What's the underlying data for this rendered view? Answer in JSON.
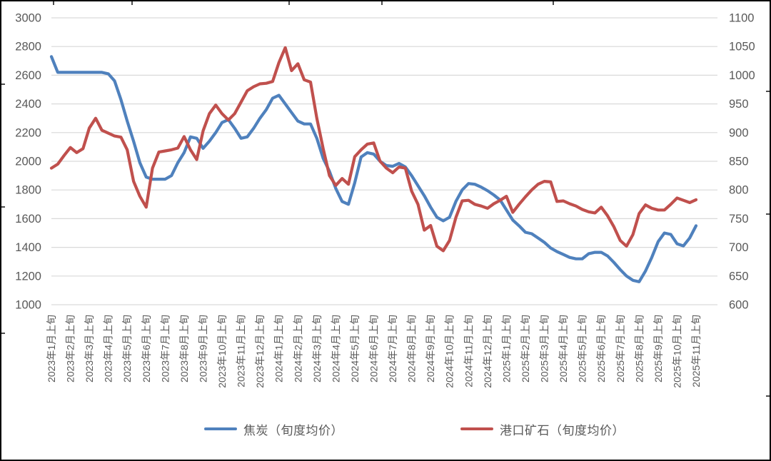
{
  "colors": {
    "grid": "#D9D9D9",
    "axis_text": "#595959",
    "background": "#FFFFFF",
    "frame": "#000000",
    "coke_blue": "#4F81BD",
    "ore_red": "#C0504D"
  },
  "chart_data": {
    "type": "line",
    "title": "",
    "points_per_label": 3,
    "x_unit": "旬",
    "grid": true,
    "legend_position": "bottom",
    "x_labels": [
      "2023年1月上旬",
      "2023年2月上旬",
      "2023年3月上旬",
      "2023年4月上旬",
      "2023年5月上旬",
      "2023年6月上旬",
      "2023年7月上旬",
      "2023年8月上旬",
      "2023年9月上旬",
      "2023年10月上旬",
      "2023年11月上旬",
      "2023年12月上旬",
      "2024年1月上旬",
      "2024年2月上旬",
      "2024年3月上旬",
      "2024年4月上旬",
      "2024年5月上旬",
      "2024年6月上旬",
      "2024年7月上旬",
      "2024年8月上旬",
      "2024年9月上旬",
      "2024年10月上旬",
      "2024年11月上旬",
      "2024年12月上旬",
      "2025年1月上旬",
      "2025年2月上旬",
      "2025年3月上旬",
      "2025年4月上旬",
      "2025年5月上旬",
      "2025年6月上旬",
      "2025年7月上旬",
      "2025年8月上旬",
      "2025年9月上旬",
      "2025年10月上旬",
      "2025年11月上旬"
    ],
    "left_axis": {
      "min": 1000,
      "max": 3000,
      "step": 200,
      "ticks": [
        "3000",
        "2800",
        "2600",
        "2400",
        "2200",
        "2000",
        "1800",
        "1600",
        "1400",
        "1200",
        "1000"
      ]
    },
    "right_axis": {
      "min": 600,
      "max": 1100,
      "step": 50,
      "ticks": [
        "1100",
        "1050",
        "1000",
        "950",
        "900",
        "850",
        "800",
        "750",
        "700",
        "650",
        "600"
      ]
    },
    "series": [
      {
        "name": "焦炭（旬度均价）",
        "axis": "left",
        "color": "#4F81BD",
        "values": [
          2730,
          2620,
          2620,
          2620,
          2620,
          2620,
          2620,
          2620,
          2620,
          2610,
          2560,
          2430,
          2280,
          2140,
          1990,
          1890,
          1875,
          1875,
          1875,
          1900,
          1990,
          2060,
          2170,
          2160,
          2090,
          2140,
          2200,
          2270,
          2290,
          2230,
          2160,
          2170,
          2230,
          2300,
          2360,
          2440,
          2460,
          2400,
          2340,
          2280,
          2260,
          2260,
          2160,
          2020,
          1930,
          1810,
          1720,
          1700,
          1850,
          2030,
          2060,
          2050,
          2000,
          1970,
          1965,
          1985,
          1960,
          1900,
          1830,
          1760,
          1680,
          1610,
          1585,
          1610,
          1720,
          1800,
          1845,
          1840,
          1820,
          1795,
          1765,
          1730,
          1660,
          1590,
          1550,
          1505,
          1495,
          1465,
          1435,
          1395,
          1370,
          1350,
          1330,
          1320,
          1320,
          1355,
          1365,
          1365,
          1340,
          1295,
          1245,
          1200,
          1170,
          1160,
          1235,
          1330,
          1440,
          1500,
          1490,
          1425,
          1410,
          1465,
          1550
        ]
      },
      {
        "name": "港口矿石（旬度均价）",
        "axis": "right",
        "color": "#C0504D",
        "values": [
          838,
          845,
          860,
          874,
          865,
          872,
          908,
          925,
          904,
          899,
          894,
          892,
          870,
          815,
          789,
          770,
          838,
          866,
          868,
          870,
          873,
          893,
          870,
          853,
          903,
          933,
          948,
          933,
          922,
          933,
          953,
          973,
          980,
          985,
          986,
          989,
          1022,
          1048,
          1008,
          1020,
          992,
          988,
          925,
          872,
          825,
          808,
          820,
          810,
          858,
          870,
          880,
          882,
          850,
          838,
          830,
          840,
          838,
          798,
          775,
          730,
          738,
          702,
          694,
          712,
          752,
          781,
          782,
          775,
          772,
          768,
          776,
          782,
          789,
          761,
          775,
          788,
          800,
          810,
          815,
          814,
          780,
          781,
          776,
          772,
          766,
          762,
          760,
          770,
          755,
          736,
          712,
          702,
          722,
          759,
          774,
          768,
          765,
          765,
          775,
          786,
          782,
          778,
          783
        ]
      }
    ]
  }
}
